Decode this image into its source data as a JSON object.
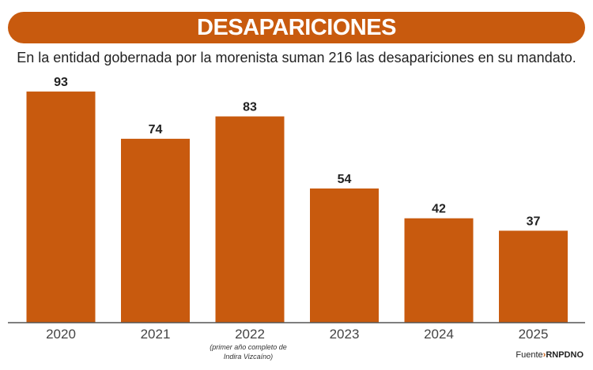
{
  "colors": {
    "bar": "#c85a0e",
    "axis": "#555555",
    "text": "#222222"
  },
  "chart_data": {
    "type": "bar",
    "title": "DESAPARICIONES",
    "subtitle": "En la entidad gobernada por la morenista suman 216 las desapariciones en su mandato.",
    "categories": [
      "2020",
      "2021",
      "2022",
      "2023",
      "2024",
      "2025"
    ],
    "values": [
      93,
      74,
      83,
      54,
      42,
      37
    ],
    "annotation": "(primer año completo de Indira Vizcaíno)",
    "grid": false
  },
  "source": {
    "label": "Fuente",
    "name": "RNPDNO"
  }
}
